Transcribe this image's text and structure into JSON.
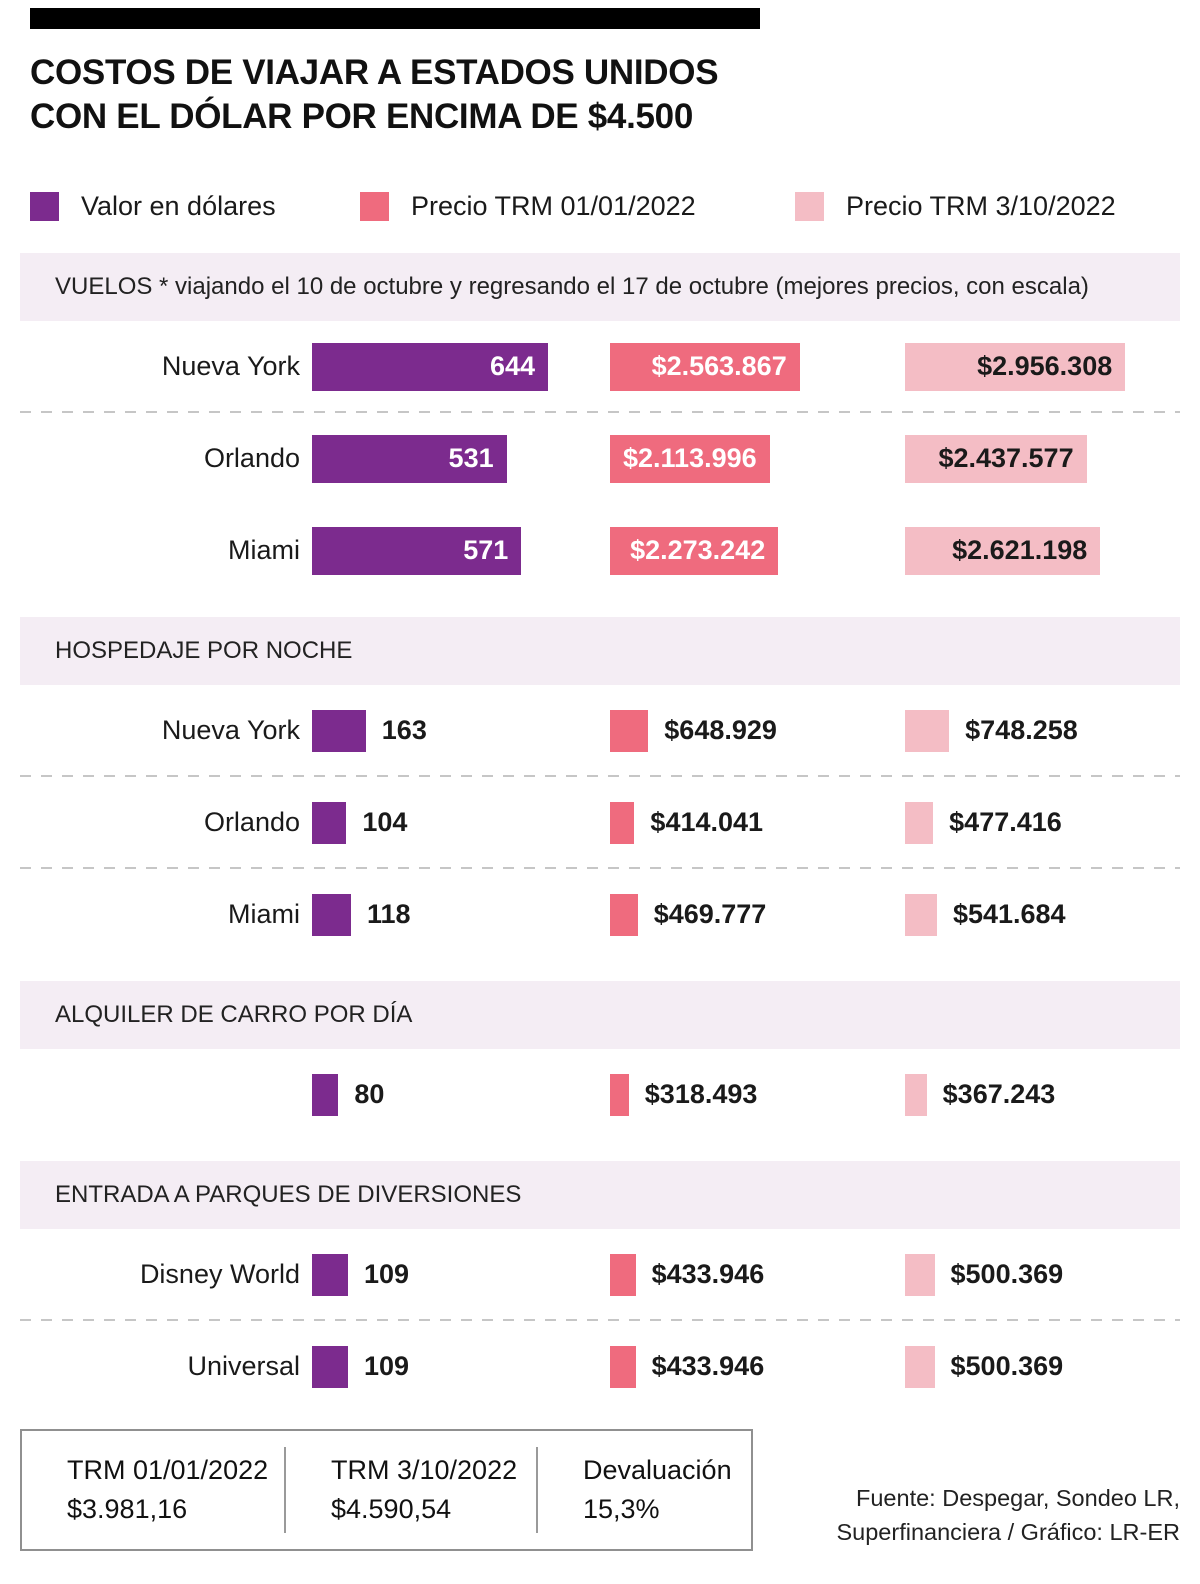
{
  "title": {
    "line1": "COSTOS DE VIAJAR A ESTADOS UNIDOS",
    "line2": "CON EL DÓLAR POR ENCIMA DE $4.500"
  },
  "colors": {
    "purple": "#7c2b8e",
    "pink": "#ef6b7e",
    "light_pink": "#f4bdc5",
    "section_bg": "#f4edf4",
    "topbar_black": "#000000"
  },
  "legend": [
    {
      "label": "Valor en dólares",
      "color": "#7c2b8e"
    },
    {
      "label": "Precio TRM 01/01/2022",
      "color": "#ef6b7e"
    },
    {
      "label": "Precio TRM 3/10/2022",
      "color": "#f4bdc5"
    }
  ],
  "chart_data": {
    "type": "bar",
    "series_meta": [
      "Valor en dólares (USD)",
      "Precio TRM 01/01/2022 (COP)",
      "Precio TRM 3/10/2022 (COP)"
    ],
    "sections": [
      {
        "header": "VUELOS * viajando el 10 de octubre y regresando el 17 de octubre (mejores precios, con escala)",
        "style": "large",
        "rows": [
          {
            "label": "Nueva York",
            "usd": "644",
            "trm_jan": "$2.563.867",
            "trm_oct": "$2.956.308",
            "separator_after": true
          },
          {
            "label": "Orlando",
            "usd": "531",
            "trm_jan": "$2.113.996",
            "trm_oct": "$2.437.577",
            "separator_after": false
          },
          {
            "label": "Miami",
            "usd": "571",
            "trm_jan": "$2.273.242",
            "trm_oct": "$2.621.198",
            "separator_after": false
          }
        ]
      },
      {
        "header": "HOSPEDAJE POR NOCHE",
        "style": "small",
        "rows": [
          {
            "label": "Nueva York",
            "usd": "163",
            "trm_jan": "$648.929",
            "trm_oct": "$748.258",
            "separator_after": true
          },
          {
            "label": "Orlando",
            "usd": "104",
            "trm_jan": "$414.041",
            "trm_oct": "$477.416",
            "separator_after": true
          },
          {
            "label": "Miami",
            "usd": "118",
            "trm_jan": "$469.777",
            "trm_oct": "$541.684",
            "separator_after": false
          }
        ]
      },
      {
        "header": "ALQUILER DE CARRO POR DÍA",
        "style": "small",
        "rows": [
          {
            "label": "",
            "usd": "80",
            "trm_jan": "$318.493",
            "trm_oct": "$367.243",
            "separator_after": false
          }
        ]
      },
      {
        "header": "ENTRADA A PARQUES DE DIVERSIONES",
        "style": "small",
        "rows": [
          {
            "label": "Disney World",
            "usd": "109",
            "trm_jan": "$433.946",
            "trm_oct": "$500.369",
            "separator_after": true
          },
          {
            "label": "Universal",
            "usd": "109",
            "trm_jan": "$433.946",
            "trm_oct": "$500.369",
            "separator_after": false
          }
        ]
      }
    ]
  },
  "footer": {
    "cells": [
      {
        "label": "TRM 01/01/2022",
        "value": "$3.981,16"
      },
      {
        "label": "TRM 3/10/2022",
        "value": "$4.590,54"
      },
      {
        "label": "Devaluación",
        "value": "15,3%"
      }
    ],
    "source_line1": "Fuente: Despegar, Sondeo LR,",
    "source_line2": "Superfinanciera / Gráfico: LR-ER"
  }
}
